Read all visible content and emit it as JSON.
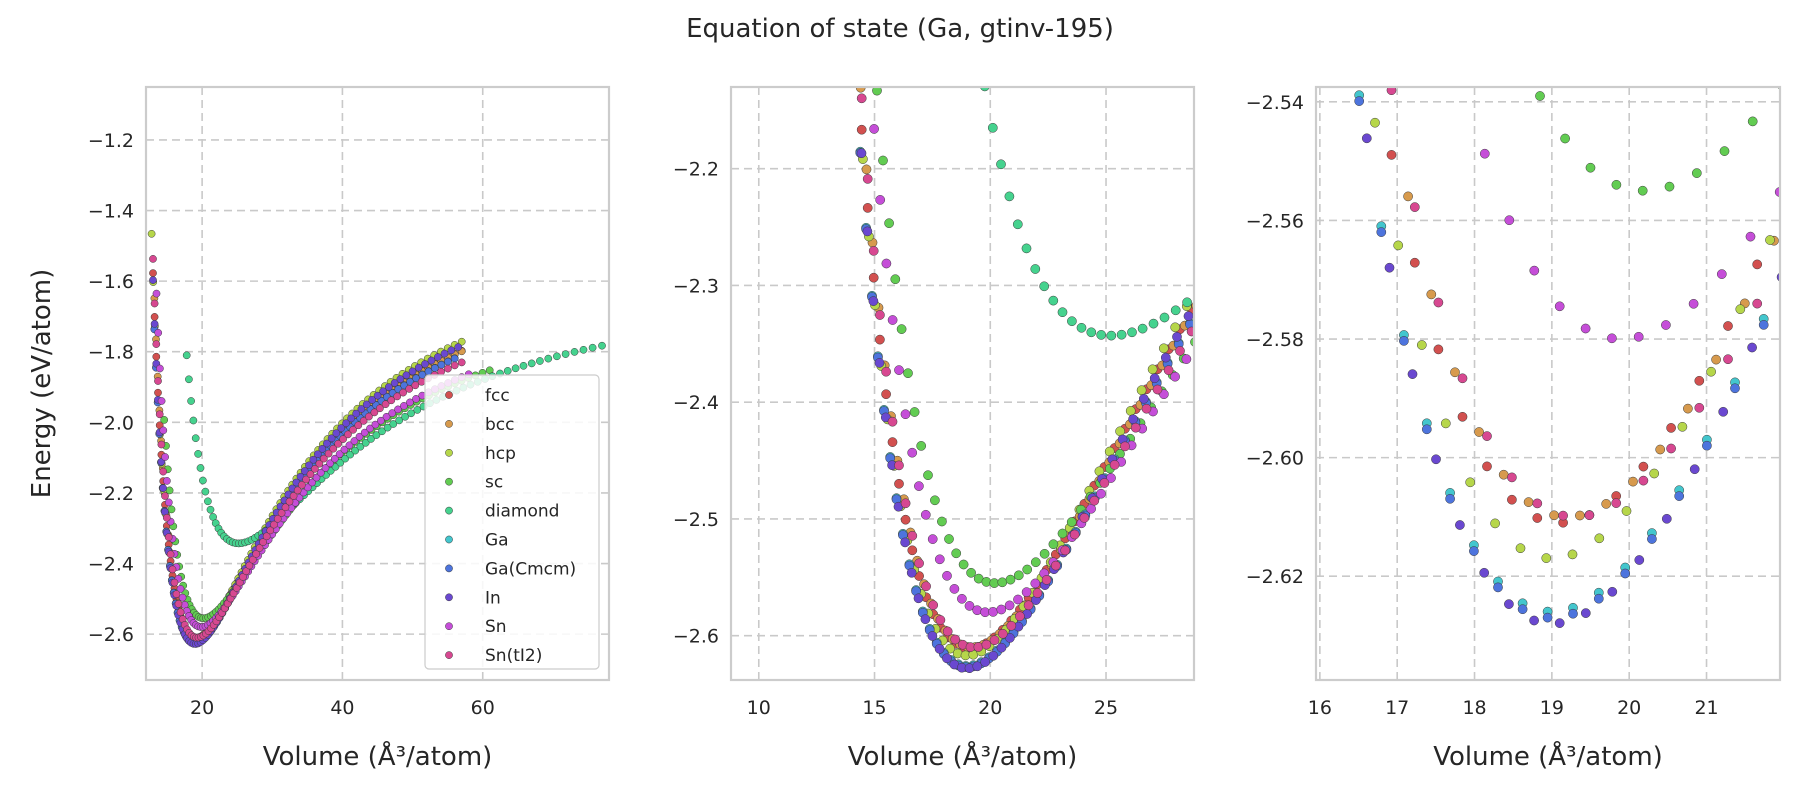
{
  "title": "Equation of state (Ga, gtinv-195)",
  "colors": {
    "fcc": "#d2504f",
    "bcc": "#d79a4d",
    "hcp": "#b6d64a",
    "sc": "#62cc52",
    "diamond": "#45d28e",
    "Ga": "#43c6cd",
    "Ga(Cmcm)": "#4d74dd",
    "In": "#6a48d0",
    "Sn": "#c54ed8",
    "Sn(tI2)": "#d74891"
  },
  "chart_data": [
    {
      "type": "scatter",
      "panel": "left",
      "xlabel": "Volume (Å³/atom)",
      "ylabel": "Energy (eV/atom)",
      "xlim": [
        12,
        78
      ],
      "ylim": [
        -2.73,
        -1.05
      ],
      "xticks": [
        20,
        40,
        60
      ],
      "yticks": [
        -2.6,
        -2.4,
        -2.2,
        -2.0,
        -1.8,
        -1.6,
        -1.4,
        -1.2
      ],
      "xtick_labels": [
        "20",
        "40",
        "60"
      ],
      "ytick_labels": [
        "−2.6",
        "−2.4",
        "−2.2",
        "−2.0",
        "−1.8",
        "−1.6",
        "−1.4",
        "−1.2"
      ],
      "grid": true,
      "legend": {
        "position": "lower-right",
        "entries": [
          "fcc",
          "bcc",
          "hcp",
          "sc",
          "diamond",
          "Ga",
          "Ga(Cmcm)",
          "In",
          "Sn",
          "Sn(tI2)"
        ]
      },
      "series": [
        {
          "name": "fcc",
          "v0": 19.1,
          "e0": -2.611,
          "b": 0.028,
          "vmin": 13.0,
          "vmax": 57.0
        },
        {
          "name": "bcc",
          "v0": 19.2,
          "e0": -2.61,
          "b": 0.028,
          "vmin": 13.2,
          "vmax": 57.0
        },
        {
          "name": "hcp",
          "v0": 19.0,
          "e0": -2.617,
          "b": 0.029,
          "vmin": 12.8,
          "vmax": 57.0
        },
        {
          "name": "sc",
          "v0": 20.2,
          "e0": -2.555,
          "b": 0.024,
          "vmin": 14.6,
          "vmax": 61.0
        },
        {
          "name": "diamond",
          "v0": 25.2,
          "e0": -2.343,
          "b": 0.019,
          "vmin": 17.8,
          "vmax": 77.0
        },
        {
          "name": "Ga",
          "v0": 19.0,
          "e0": -2.626,
          "b": 0.028,
          "vmin": 13.2,
          "vmax": 56.0
        },
        {
          "name": "Ga(Cmcm)",
          "v0": 19.0,
          "e0": -2.627,
          "b": 0.028,
          "vmin": 13.2,
          "vmax": 56.0
        },
        {
          "name": "In",
          "v0": 19.0,
          "e0": -2.628,
          "b": 0.029,
          "vmin": 13.0,
          "vmax": 56.5
        },
        {
          "name": "Sn",
          "v0": 19.9,
          "e0": -2.58,
          "b": 0.025,
          "vmin": 13.5,
          "vmax": 58.0
        },
        {
          "name": "Sn(tI2)",
          "v0": 19.3,
          "e0": -2.61,
          "b": 0.027,
          "vmin": 13.0,
          "vmax": 57.0
        }
      ]
    },
    {
      "type": "scatter",
      "panel": "middle",
      "xlabel": "Volume (Å³/atom)",
      "ylabel": "",
      "xlim": [
        8.8,
        28.8
      ],
      "ylim": [
        -2.638,
        -2.13
      ],
      "xticks": [
        10,
        15,
        20,
        25
      ],
      "yticks": [
        -2.6,
        -2.5,
        -2.4,
        -2.3,
        -2.2
      ],
      "xtick_labels": [
        "10",
        "15",
        "20",
        "25"
      ],
      "ytick_labels": [
        "−2.6",
        "−2.5",
        "−2.4",
        "−2.3",
        "−2.2"
      ],
      "grid": true
    },
    {
      "type": "scatter",
      "panel": "right",
      "xlabel": "Volume (Å³/atom)",
      "ylabel": "",
      "xlim": [
        15.95,
        21.95
      ],
      "ylim": [
        -2.6375,
        -2.5375
      ],
      "xticks": [
        16,
        17,
        18,
        19,
        20,
        21
      ],
      "yticks": [
        -2.62,
        -2.6,
        -2.58,
        -2.56,
        -2.54
      ],
      "xtick_labels": [
        "16",
        "17",
        "18",
        "19",
        "20",
        "21"
      ],
      "ytick_labels": [
        "−2.62",
        "−2.60",
        "−2.58",
        "−2.56",
        "−2.54"
      ],
      "grid": true
    }
  ]
}
